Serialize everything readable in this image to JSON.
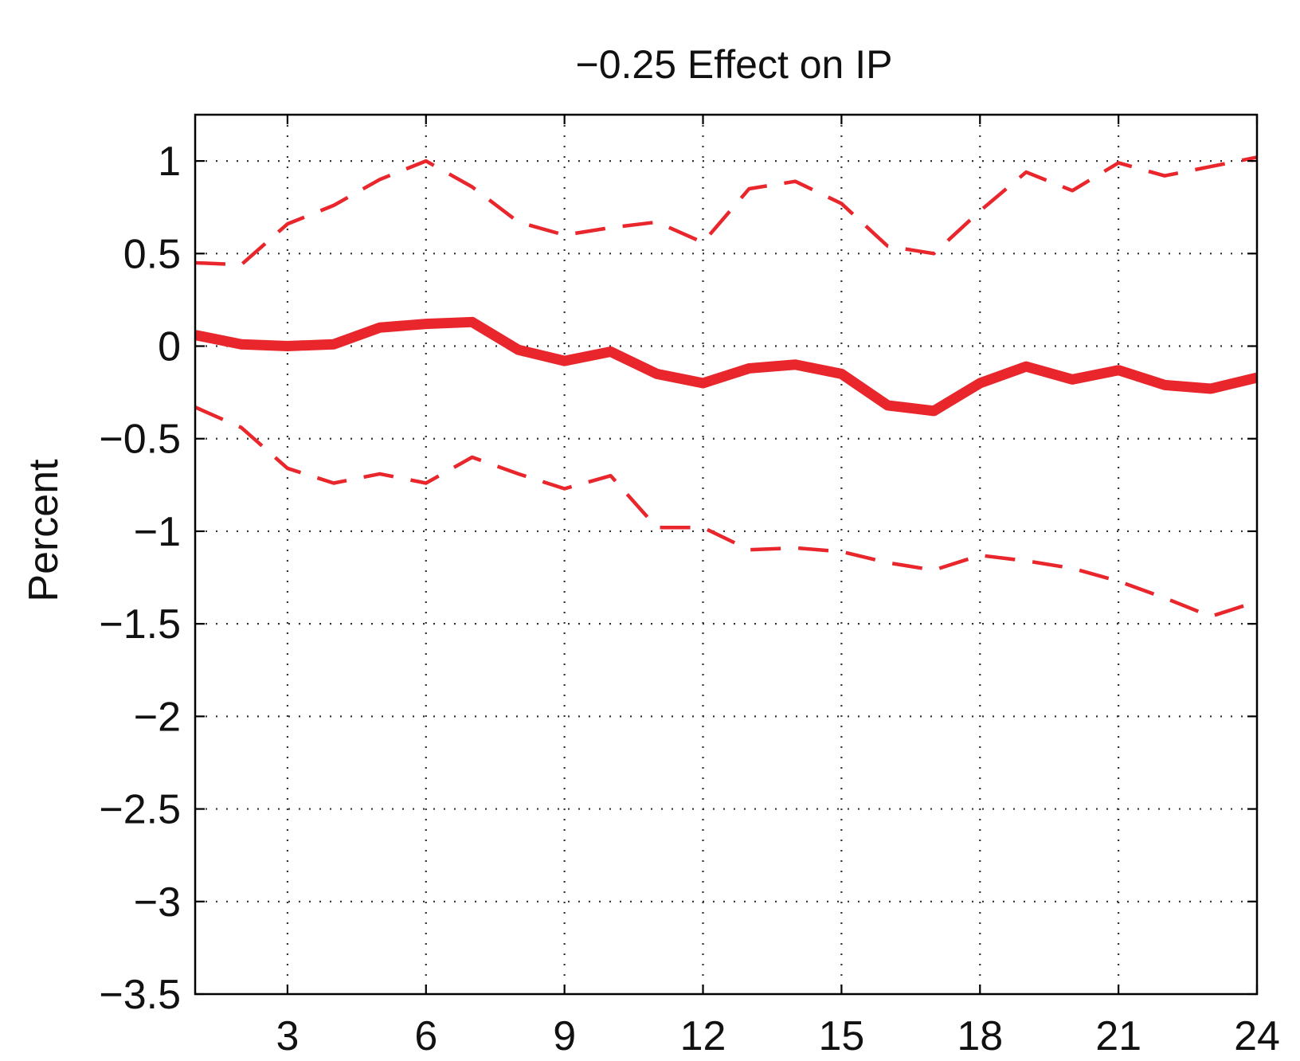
{
  "chart_data": {
    "type": "line",
    "title": "−0.25 Effect on IP",
    "xlabel": "",
    "ylabel": "Percent",
    "xlim": [
      1,
      24
    ],
    "ylim": [
      -3.5,
      1.25
    ],
    "x_ticks": [
      3,
      6,
      9,
      12,
      15,
      18,
      21,
      24
    ],
    "x_tick_labels": [
      "3",
      "6",
      "9",
      "12",
      "15",
      "18",
      "21",
      "24"
    ],
    "y_ticks": [
      1,
      0.5,
      0,
      -0.5,
      -1,
      -1.5,
      -2,
      -2.5,
      -3,
      -3.5
    ],
    "y_tick_labels": [
      "1",
      "0.5",
      "0",
      "−0.5",
      "−1",
      "−1.5",
      "−2",
      "−2.5",
      "−3",
      "−3.5"
    ],
    "grid": true,
    "x": [
      1,
      2,
      3,
      4,
      5,
      6,
      7,
      8,
      9,
      10,
      11,
      12,
      13,
      14,
      15,
      16,
      17,
      18,
      19,
      20,
      21,
      22,
      23,
      24
    ],
    "series": [
      {
        "style": "solid",
        "color": "#e8262b",
        "values": [
          0.06,
          0.01,
          0.0,
          0.01,
          0.1,
          0.12,
          0.13,
          -0.02,
          -0.08,
          -0.03,
          -0.15,
          -0.2,
          -0.12,
          -0.1,
          -0.15,
          -0.32,
          -0.35,
          -0.2,
          -0.11,
          -0.18,
          -0.13,
          -0.21,
          -0.23,
          -0.17
        ]
      },
      {
        "style": "dashed",
        "color": "#e8262b",
        "values": [
          0.45,
          0.44,
          0.66,
          0.76,
          0.9,
          1.0,
          0.86,
          0.67,
          0.6,
          0.64,
          0.67,
          0.56,
          0.85,
          0.89,
          0.77,
          0.54,
          0.5,
          0.73,
          0.94,
          0.84,
          0.99,
          0.92,
          0.97,
          1.02
        ]
      },
      {
        "style": "dashed",
        "color": "#e8262b",
        "values": [
          -0.33,
          -0.44,
          -0.66,
          -0.74,
          -0.69,
          -0.74,
          -0.6,
          -0.69,
          -0.77,
          -0.7,
          -0.98,
          -0.98,
          -1.1,
          -1.09,
          -1.11,
          -1.17,
          -1.21,
          -1.13,
          -1.16,
          -1.2,
          -1.27,
          -1.36,
          -1.46,
          -1.38
        ]
      }
    ]
  }
}
